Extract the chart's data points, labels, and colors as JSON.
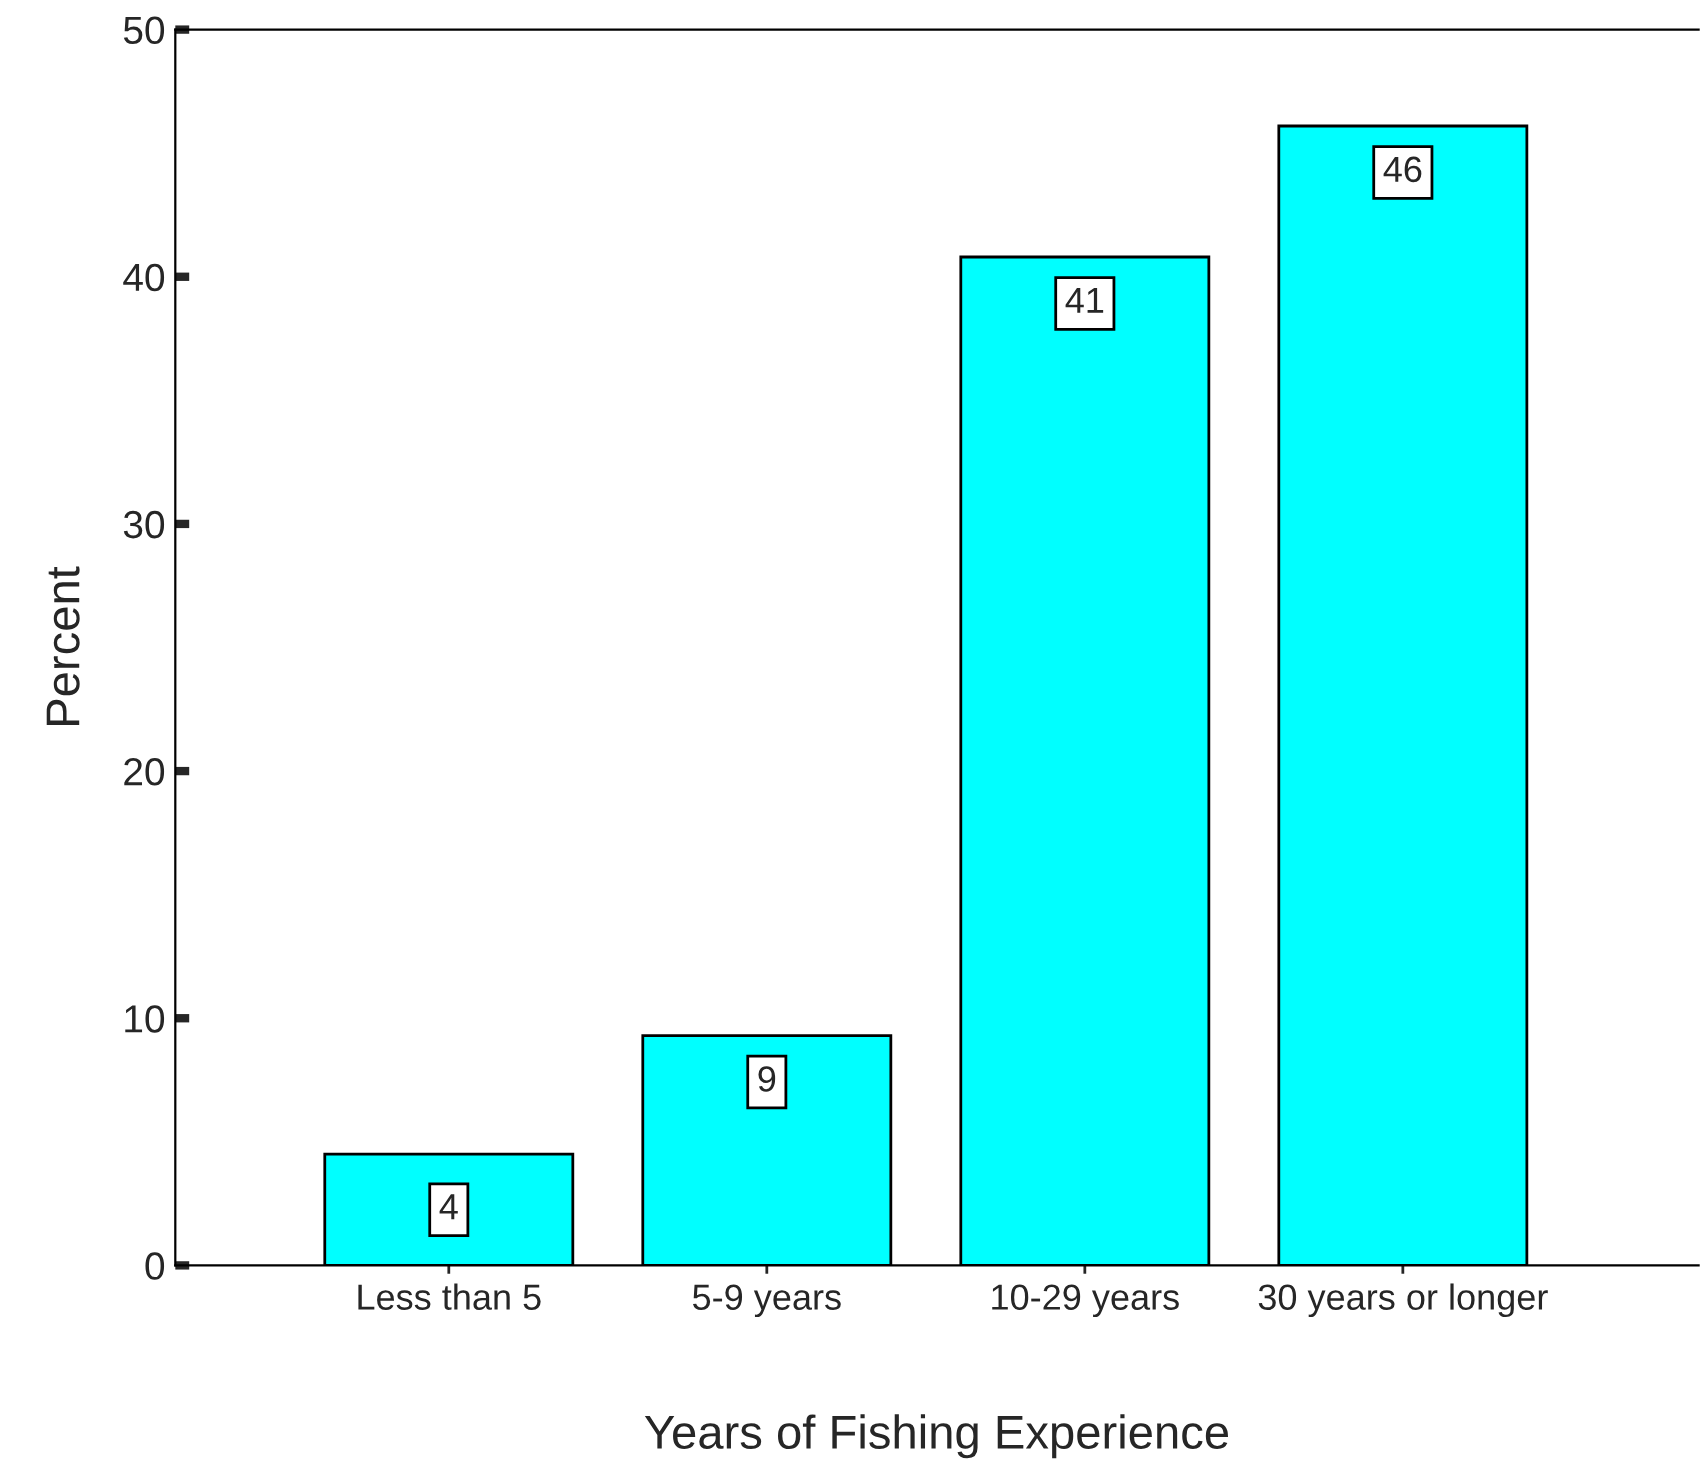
{
  "chart_data": {
    "type": "bar",
    "xlabel": "Years of Fishing Experience",
    "ylabel": "Percent",
    "categories": [
      "Less than 5",
      "5-9 years",
      "10-29 years",
      "30 years or longer"
    ],
    "values": [
      4.5,
      9.3,
      40.8,
      46.1
    ],
    "value_labels": [
      "4",
      "9",
      "41",
      "46"
    ],
    "color": "#00ffff",
    "ylim": [
      0,
      50
    ],
    "yticks": [
      0,
      10,
      20,
      30,
      40,
      50
    ],
    "grid": false
  }
}
